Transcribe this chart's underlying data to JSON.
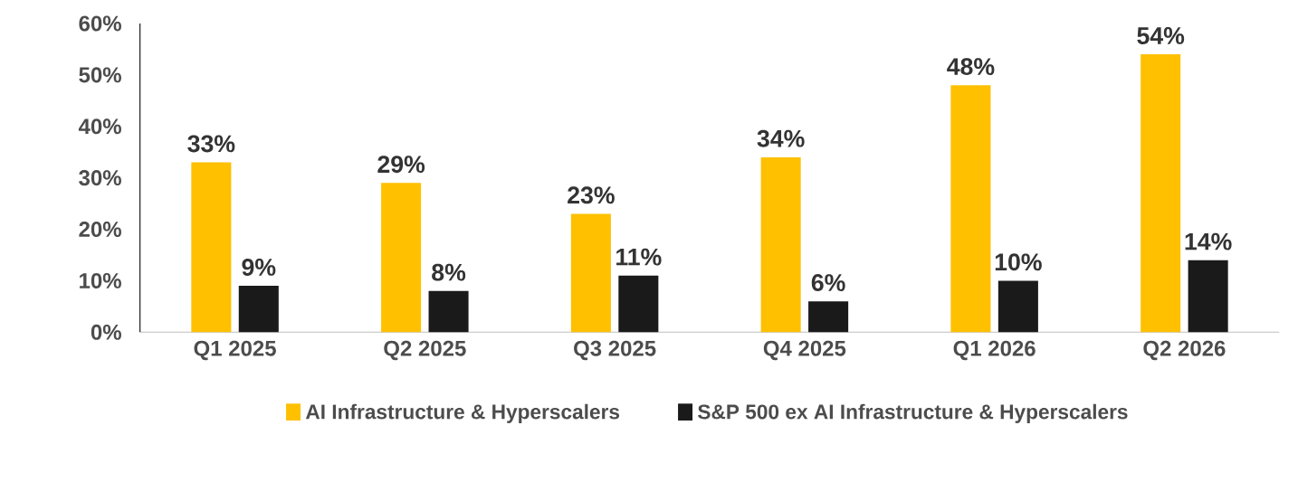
{
  "chart_data": {
    "type": "bar",
    "categories": [
      "Q1 2025",
      "Q2 2025",
      "Q3 2025",
      "Q4 2025",
      "Q1 2026",
      "Q2 2026"
    ],
    "series": [
      {
        "name": "AI Infrastructure & Hyperscalers",
        "color": "#ffc000",
        "values": [
          33,
          29,
          23,
          34,
          48,
          54
        ],
        "value_labels": [
          "33%",
          "29%",
          "23%",
          "34%",
          "48%",
          "54%"
        ]
      },
      {
        "name": "S&P 500 ex AI Infrastructure & Hyperscalers",
        "color": "#1a1a1a",
        "values": [
          9,
          8,
          11,
          6,
          10,
          14
        ],
        "value_labels": [
          "9%",
          "8%",
          "11%",
          "6%",
          "10%",
          "14%"
        ]
      }
    ],
    "ylim": [
      0,
      60
    ],
    "yticks": [
      {
        "value": 0,
        "label": "0%"
      },
      {
        "value": 10,
        "label": "10%"
      },
      {
        "value": 20,
        "label": "20%"
      },
      {
        "value": 30,
        "label": "30%"
      },
      {
        "value": 40,
        "label": "40%"
      },
      {
        "value": 50,
        "label": "50%"
      },
      {
        "value": 60,
        "label": "60%"
      }
    ],
    "grid": false,
    "legend": "bottom"
  }
}
